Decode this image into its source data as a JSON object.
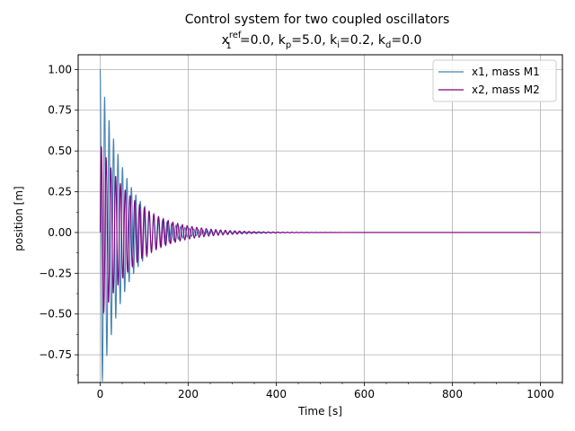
{
  "chart_data": {
    "type": "line",
    "title": "Control system for two coupled oscillators",
    "subtitle_parts": {
      "a": "x",
      "a_sub": "1",
      "a_sup": "ref",
      "b": "=0.0, k",
      "b_sub": "p",
      "c": "=5.0, k",
      "c_sub": "i",
      "d": "=0.2, k",
      "d_sub": "d",
      "e": "=0.0"
    },
    "xlabel": "Time [s]",
    "ylabel": "position [m]",
    "xlim": [
      -50,
      1050
    ],
    "ylim": [
      -0.92,
      1.09
    ],
    "xticks": [
      0,
      200,
      400,
      600,
      800,
      1000
    ],
    "xtick_labels": [
      "0",
      "200",
      "400",
      "600",
      "800",
      "1000"
    ],
    "yticks": [
      -0.75,
      -0.5,
      -0.25,
      0.0,
      0.25,
      0.5,
      0.75,
      1.0
    ],
    "ytick_labels": [
      "−0.75",
      "−0.50",
      "−0.25",
      "0.00",
      "0.25",
      "0.50",
      "0.75",
      "1.00"
    ],
    "grid": true,
    "legend_position": "top-right",
    "series": [
      {
        "name": "x1, mass M1",
        "color": "#4682b4",
        "model": {
          "amp": 1.0,
          "decay": 0.018,
          "omega": 0.62,
          "phase": 1.5708,
          "t_max": 1000
        },
        "peaks": [
          [
            0,
            1.0
          ],
          [
            3,
            -0.84
          ],
          [
            10,
            0.7
          ],
          [
            15,
            -0.81
          ],
          [
            20,
            0.69
          ],
          [
            35,
            0.46
          ],
          [
            40,
            0.41
          ],
          [
            60,
            0.27
          ],
          [
            100,
            0.13
          ],
          [
            150,
            0.07
          ],
          [
            200,
            0.04
          ],
          [
            300,
            0.01
          ],
          [
            400,
            0.0
          ],
          [
            1000,
            0.0
          ]
        ]
      },
      {
        "name": "x2, mass M2",
        "color": "#800080",
        "model": {
          "amp": 0.55,
          "decay": 0.013,
          "omega": 0.58,
          "phase": 0.0,
          "t_max": 1000
        },
        "peaks": [
          [
            0,
            0.52
          ],
          [
            10,
            -0.57
          ],
          [
            25,
            0.49
          ],
          [
            35,
            -0.38
          ],
          [
            60,
            0.26
          ],
          [
            85,
            0.19
          ],
          [
            120,
            0.13
          ],
          [
            160,
            0.09
          ],
          [
            200,
            0.05
          ],
          [
            300,
            0.01
          ],
          [
            400,
            0.0
          ],
          [
            1000,
            0.0
          ]
        ]
      }
    ]
  }
}
